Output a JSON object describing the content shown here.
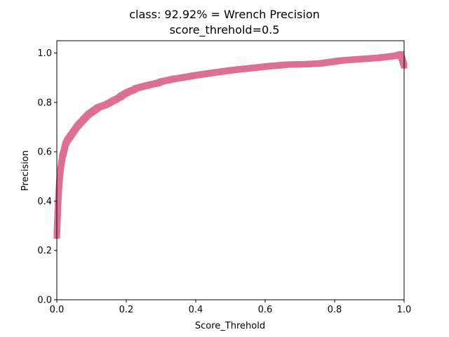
{
  "chart_data": {
    "type": "line",
    "title": "class: 92.92% = Wrench Precision",
    "subtitle": "score_threhold=0.5",
    "xlabel": "Score_Threhold",
    "ylabel": "Precision",
    "xlim": [
      0,
      1
    ],
    "ylim": [
      0,
      1.05
    ],
    "xticks": [
      "0.0",
      "0.2",
      "0.4",
      "0.6",
      "0.8",
      "1.0"
    ],
    "yticks": [
      "0.0",
      "0.2",
      "0.4",
      "0.6",
      "0.8",
      "1.0"
    ],
    "grid": false,
    "marker": "square",
    "series": [
      {
        "color": "#db7093",
        "x": [
          0.0,
          0.002,
          0.004,
          0.006,
          0.008,
          0.01,
          0.013,
          0.016,
          0.02,
          0.025,
          0.03,
          0.035,
          0.04,
          0.05,
          0.06,
          0.07,
          0.08,
          0.09,
          0.1,
          0.11,
          0.12,
          0.13,
          0.14,
          0.15,
          0.16,
          0.17,
          0.18,
          0.19,
          0.2,
          0.21,
          0.22,
          0.23,
          0.25,
          0.27,
          0.29,
          0.3,
          0.32,
          0.34,
          0.36,
          0.38,
          0.4,
          0.42,
          0.44,
          0.46,
          0.48,
          0.5,
          0.52,
          0.54,
          0.56,
          0.58,
          0.6,
          0.62,
          0.64,
          0.66,
          0.72,
          0.76,
          0.78,
          0.8,
          0.82,
          0.84,
          0.86,
          0.88,
          0.9,
          0.92,
          0.94,
          0.96,
          0.98,
          0.99,
          1.0
        ],
        "y": [
          0.26,
          0.33,
          0.4,
          0.45,
          0.49,
          0.52,
          0.55,
          0.58,
          0.6,
          0.63,
          0.645,
          0.655,
          0.665,
          0.685,
          0.705,
          0.72,
          0.735,
          0.75,
          0.76,
          0.77,
          0.78,
          0.785,
          0.79,
          0.797,
          0.805,
          0.812,
          0.82,
          0.83,
          0.838,
          0.845,
          0.85,
          0.858,
          0.865,
          0.872,
          0.878,
          0.884,
          0.89,
          0.896,
          0.9,
          0.905,
          0.91,
          0.914,
          0.918,
          0.922,
          0.926,
          0.93,
          0.933,
          0.936,
          0.939,
          0.942,
          0.945,
          0.948,
          0.95,
          0.953,
          0.955,
          0.958,
          0.962,
          0.966,
          0.97,
          0.972,
          0.974,
          0.976,
          0.978,
          0.98,
          0.983,
          0.986,
          0.99,
          0.995,
          0.95
        ]
      }
    ]
  }
}
